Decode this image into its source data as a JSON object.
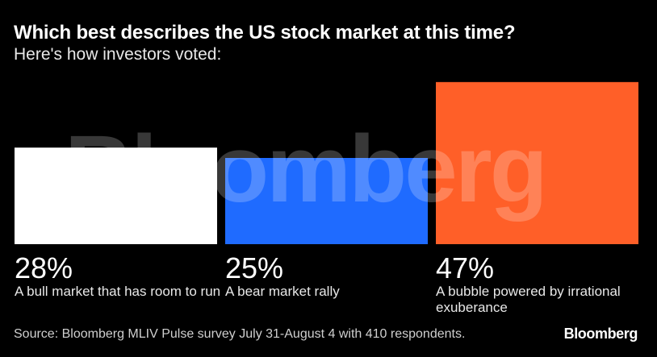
{
  "title": "Which best describes the US stock market at this time?",
  "subtitle": "Here's how investors voted:",
  "watermark": "Bloomberg",
  "source": "Source: Bloomberg MLIV Pulse survey July 31-August 4 with 410 respondents.",
  "logo": "Bloomberg",
  "chart_data": {
    "type": "bar",
    "categories": [
      "A bull market that has room to run",
      "A bear market rally",
      "A bubble powered by irrational exuberance"
    ],
    "values": [
      28,
      25,
      47
    ],
    "value_labels": [
      "28%",
      "25%",
      "47%"
    ],
    "colors": [
      "#ffffff",
      "#1f6bff",
      "#ff5f28"
    ],
    "unit": "%",
    "title": "Which best describes the US stock market at this time?",
    "subtitle": "Here's how investors voted:",
    "xlabel": "",
    "ylabel": "",
    "grid": false
  }
}
